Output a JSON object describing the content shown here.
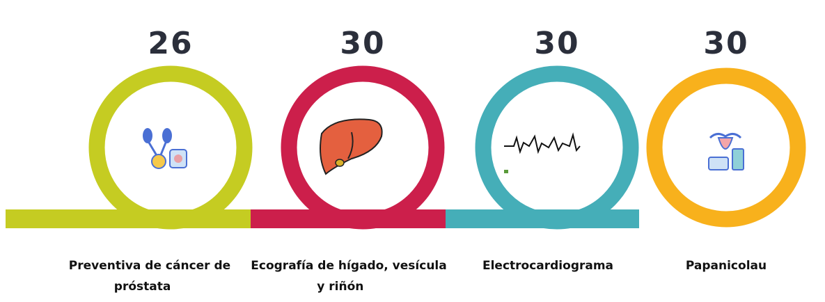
{
  "items": [
    {
      "number": 26,
      "label_lines": [
        "Preventiva de cáncer de",
        "próstata"
      ],
      "color": "#c5cc22"
    },
    {
      "number": 30,
      "label_lines": [
        "Ecografía de hígado, vesícula",
        "y riñón"
      ],
      "color": "#cc1f4b"
    },
    {
      "number": 30,
      "label_lines": [
        "Electrocardiograma"
      ],
      "color": "#45aeb8"
    },
    {
      "number": 30,
      "label_lines": [
        "Papanicolau"
      ],
      "color": "#f8b11c"
    }
  ]
}
